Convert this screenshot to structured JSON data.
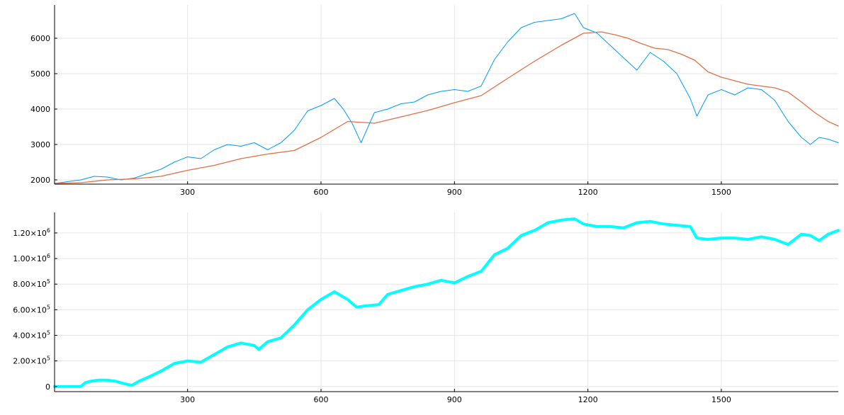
{
  "chart_data": [
    {
      "type": "line",
      "title": "",
      "xlabel": "",
      "ylabel": "",
      "xlim": [
        1,
        1763
      ],
      "ylim": [
        1880,
        6940
      ],
      "grid": true,
      "legend": "none",
      "x_ticks": [
        300,
        600,
        900,
        1200,
        1500
      ],
      "x_tick_labels": [
        "300",
        "600",
        "900",
        "1200",
        "1500"
      ],
      "y_ticks": [
        2000,
        3000,
        4000,
        5000,
        6000
      ],
      "y_tick_labels": [
        "2000",
        "3000",
        "4000",
        "5000",
        "6000"
      ],
      "series": [
        {
          "color": "#009af9",
          "line_width": 1,
          "x": [
            1,
            30,
            60,
            90,
            120,
            150,
            180,
            210,
            240,
            270,
            300,
            330,
            360,
            390,
            420,
            450,
            480,
            510,
            540,
            570,
            600,
            630,
            650,
            670,
            690,
            720,
            750,
            780,
            810,
            840,
            870,
            900,
            930,
            960,
            990,
            1020,
            1050,
            1080,
            1110,
            1140,
            1170,
            1190,
            1220,
            1250,
            1280,
            1310,
            1340,
            1370,
            1400,
            1430,
            1445,
            1470,
            1500,
            1530,
            1560,
            1590,
            1620,
            1650,
            1680,
            1700,
            1720,
            1740,
            1763
          ],
          "y": [
            1900,
            1950,
            2000,
            2100,
            2080,
            2000,
            2050,
            2180,
            2300,
            2500,
            2650,
            2600,
            2850,
            3000,
            2950,
            3050,
            2850,
            3050,
            3400,
            3950,
            4100,
            4300,
            4000,
            3600,
            3050,
            3900,
            4000,
            4150,
            4200,
            4400,
            4500,
            4550,
            4500,
            4650,
            5400,
            5900,
            6300,
            6450,
            6500,
            6550,
            6700,
            6300,
            6150,
            5800,
            5450,
            5100,
            5600,
            5350,
            5000,
            4300,
            3800,
            4400,
            4550,
            4400,
            4600,
            4550,
            4250,
            3650,
            3200,
            3000,
            3200,
            3150,
            3050
          ]
        },
        {
          "color": "#e26f46",
          "line_width": 1.3,
          "x": [
            1,
            60,
            120,
            180,
            240,
            300,
            360,
            420,
            480,
            540,
            600,
            660,
            720,
            780,
            840,
            900,
            960,
            1020,
            1080,
            1140,
            1190,
            1230,
            1260,
            1290,
            1320,
            1350,
            1380,
            1410,
            1440,
            1470,
            1500,
            1530,
            1560,
            1590,
            1620,
            1650,
            1680,
            1710,
            1740,
            1763
          ],
          "y": [
            1900,
            1920,
            2000,
            2030,
            2100,
            2270,
            2410,
            2600,
            2730,
            2830,
            3200,
            3650,
            3600,
            3780,
            3960,
            4180,
            4380,
            4870,
            5350,
            5800,
            6140,
            6180,
            6100,
            6000,
            5850,
            5720,
            5680,
            5550,
            5380,
            5050,
            4900,
            4800,
            4700,
            4650,
            4600,
            4480,
            4200,
            3900,
            3650,
            3520
          ]
        }
      ]
    },
    {
      "type": "line",
      "title": "",
      "xlabel": "",
      "ylabel": "",
      "xlim": [
        1,
        1763
      ],
      "ylim": [
        -40000,
        1360000
      ],
      "grid": true,
      "legend": "none",
      "x_ticks": [
        300,
        600,
        900,
        1200,
        1500
      ],
      "x_tick_labels": [
        "300",
        "600",
        "900",
        "1200",
        "1500"
      ],
      "y_ticks": [
        0,
        200000,
        400000,
        600000,
        800000,
        1000000,
        1200000
      ],
      "y_tick_labels": [
        {
          "base": "0",
          "exp": ""
        },
        {
          "base": "2.00×10",
          "exp": "5"
        },
        {
          "base": "4.00×10",
          "exp": "5"
        },
        {
          "base": "6.00×10",
          "exp": "5"
        },
        {
          "base": "8.00×10",
          "exp": "5"
        },
        {
          "base": "1.00×10",
          "exp": "6"
        },
        {
          "base": "1.20×10",
          "exp": "6"
        }
      ],
      "series": [
        {
          "color": "#00ffff",
          "line_width": 4,
          "x": [
            1,
            30,
            50,
            60,
            70,
            80,
            100,
            120,
            140,
            150,
            160,
            175,
            190,
            210,
            240,
            270,
            300,
            330,
            360,
            390,
            420,
            450,
            460,
            480,
            510,
            540,
            570,
            600,
            630,
            660,
            680,
            700,
            730,
            750,
            780,
            810,
            840,
            870,
            900,
            930,
            960,
            990,
            1020,
            1050,
            1080,
            1110,
            1140,
            1170,
            1190,
            1220,
            1250,
            1280,
            1310,
            1340,
            1370,
            1400,
            1430,
            1445,
            1470,
            1500,
            1530,
            1560,
            1590,
            1620,
            1650,
            1680,
            1700,
            1720,
            1740,
            1763
          ],
          "y": [
            0,
            0,
            0,
            0,
            30000,
            40000,
            50000,
            50000,
            40000,
            30000,
            20000,
            10000,
            40000,
            70000,
            120000,
            180000,
            200000,
            190000,
            250000,
            310000,
            340000,
            320000,
            290000,
            350000,
            380000,
            480000,
            600000,
            680000,
            740000,
            680000,
            620000,
            630000,
            640000,
            720000,
            750000,
            780000,
            800000,
            830000,
            810000,
            860000,
            900000,
            1030000,
            1080000,
            1180000,
            1220000,
            1280000,
            1300000,
            1310000,
            1270000,
            1250000,
            1250000,
            1240000,
            1280000,
            1290000,
            1270000,
            1260000,
            1250000,
            1160000,
            1150000,
            1160000,
            1160000,
            1150000,
            1170000,
            1150000,
            1110000,
            1190000,
            1180000,
            1140000,
            1190000,
            1220000
          ]
        }
      ]
    }
  ]
}
